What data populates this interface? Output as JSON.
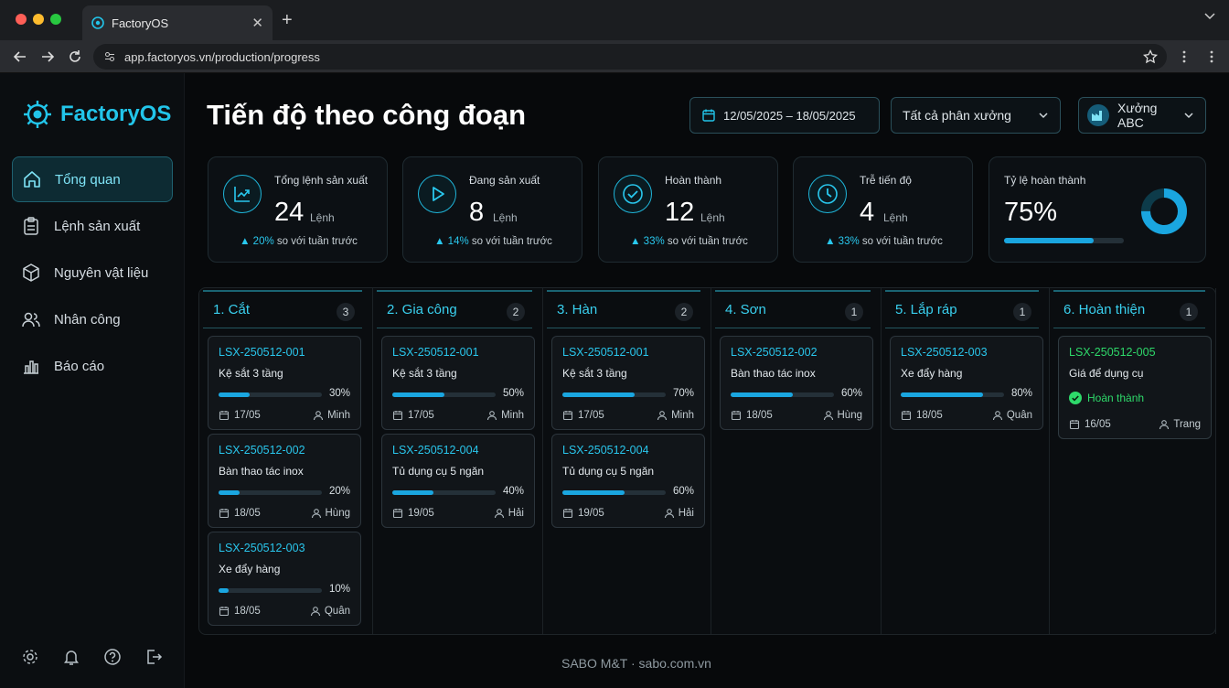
{
  "browser": {
    "tab_title": "FactoryOS",
    "url": "app.factoryos.vn/production/progress",
    "dots": [
      "#ff5f57",
      "#febc2e",
      "#28c840"
    ]
  },
  "sidebar": {
    "logo": "FactoryOS",
    "items": [
      {
        "label": "Tổng quan",
        "icon": "home-icon",
        "active": true
      },
      {
        "label": "Lệnh sản xuất",
        "icon": "clipboard-icon",
        "active": false
      },
      {
        "label": "Nguyên vật liệu",
        "icon": "box-icon",
        "active": false
      },
      {
        "label": "Nhân công",
        "icon": "users-icon",
        "active": false
      },
      {
        "label": "Báo cáo",
        "icon": "bar-chart-icon",
        "active": false
      }
    ]
  },
  "header": {
    "title": "Tiến độ theo công đoạn",
    "date_range": "12/05/2025 – 18/05/2025",
    "workshop_filter": "Tất cả phân xưởng",
    "factory": "Xưởng ABC"
  },
  "stats": [
    {
      "label": "Tổng lệnh sản xuất",
      "value": "24",
      "unit": "Lệnh",
      "delta": "20%",
      "compare": "so với tuần trước",
      "icon": "trend-icon"
    },
    {
      "label": "Đang sản xuất",
      "value": "8",
      "unit": "Lệnh",
      "delta": "14%",
      "compare": "so với tuần trước",
      "icon": "play-icon"
    },
    {
      "label": "Hoàn thành",
      "value": "12",
      "unit": "Lệnh",
      "delta": "33%",
      "compare": "so với tuần trước",
      "icon": "check-circle-icon"
    },
    {
      "label": "Trễ tiến độ",
      "value": "4",
      "unit": "Lệnh",
      "delta": "33%",
      "compare": "so với tuần trước",
      "icon": "clock-icon"
    }
  ],
  "completion": {
    "label": "Tỷ lệ hoàn thành",
    "value": "75%",
    "fraction": 0.75
  },
  "columns": [
    {
      "title": "1. Cắt",
      "count": "3",
      "cards": [
        {
          "code": "LSX-250512-001",
          "name": "Kệ sắt 3 tầng",
          "progress": "30%",
          "date": "17/05",
          "worker": "Minh"
        },
        {
          "code": "LSX-250512-002",
          "name": "Bàn thao tác inox",
          "progress": "20%",
          "date": "18/05",
          "worker": "Hùng"
        },
        {
          "code": "LSX-250512-003",
          "name": "Xe đẩy hàng",
          "progress": "10%",
          "date": "18/05",
          "worker": "Quân"
        }
      ]
    },
    {
      "title": "2. Gia công",
      "count": "2",
      "cards": [
        {
          "code": "LSX-250512-001",
          "name": "Kệ sắt 3 tầng",
          "progress": "50%",
          "date": "17/05",
          "worker": "Minh"
        },
        {
          "code": "LSX-250512-004",
          "name": "Tủ dụng cụ 5 ngăn",
          "progress": "40%",
          "date": "19/05",
          "worker": "Hải"
        }
      ]
    },
    {
      "title": "3. Hàn",
      "count": "2",
      "cards": [
        {
          "code": "LSX-250512-001",
          "name": "Kệ sắt 3 tầng",
          "progress": "70%",
          "date": "17/05",
          "worker": "Minh"
        },
        {
          "code": "LSX-250512-004",
          "name": "Tủ dụng cụ 5 ngăn",
          "progress": "60%",
          "date": "19/05",
          "worker": "Hải"
        }
      ]
    },
    {
      "title": "4. Sơn",
      "count": "1",
      "cards": [
        {
          "code": "LSX-250512-002",
          "name": "Bàn thao tác inox",
          "progress": "60%",
          "date": "18/05",
          "worker": "Hùng"
        }
      ]
    },
    {
      "title": "5. Lắp ráp",
      "count": "1",
      "cards": [
        {
          "code": "LSX-250512-003",
          "name": "Xe đẩy hàng",
          "progress": "80%",
          "date": "18/05",
          "worker": "Quân"
        }
      ]
    },
    {
      "title": "6. Hoàn thiện",
      "count": "1",
      "cards": [
        {
          "code": "LSX-250512-005",
          "name": "Giá để dụng cụ",
          "status": "Hoàn thành",
          "date": "16/05",
          "worker": "Trang"
        }
      ]
    }
  ],
  "footer": "SABO M&T · sabo.com.vn",
  "colors": {
    "accent": "#22c5ea",
    "done": "#2ed96a",
    "bar": "#1aa6e0"
  }
}
